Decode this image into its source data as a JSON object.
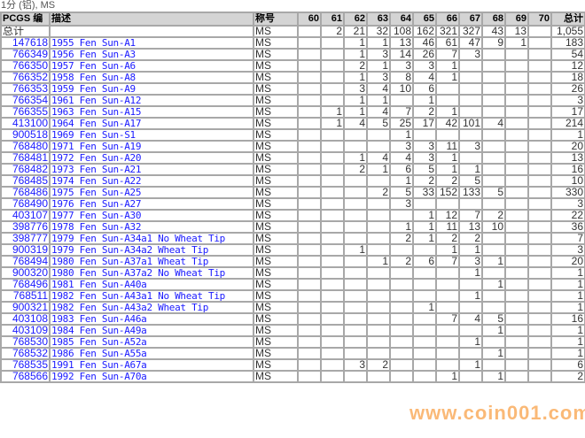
{
  "title": "1分 (铝), MS",
  "headers": {
    "code": "PCGS 编",
    "desc": "描述",
    "designation": "称号",
    "grades": [
      "60",
      "61",
      "62",
      "63",
      "64",
      "65",
      "66",
      "67",
      "68",
      "69",
      "70"
    ],
    "total": "总计"
  },
  "total_row": {
    "label": "总计",
    "designation": "MS",
    "counts": [
      "",
      "2",
      "21",
      "32",
      "108",
      "162",
      "321",
      "327",
      "43",
      "13",
      ""
    ],
    "total": "1,055"
  },
  "rows": [
    {
      "code": "147618",
      "desc": "1955 Fen Sun-A1",
      "counts": [
        "",
        "",
        "1",
        "1",
        "13",
        "46",
        "61",
        "47",
        "9",
        "1",
        ""
      ],
      "total": "183"
    },
    {
      "code": "766349",
      "desc": "1956 Fen Sun-A3",
      "counts": [
        "",
        "",
        "1",
        "3",
        "14",
        "26",
        "7",
        "3",
        "",
        "",
        ""
      ],
      "total": "54"
    },
    {
      "code": "766350",
      "desc": "1957 Fen Sun-A6",
      "counts": [
        "",
        "",
        "2",
        "1",
        "3",
        "3",
        "1",
        "",
        "",
        "",
        ""
      ],
      "total": "12"
    },
    {
      "code": "766352",
      "desc": "1958 Fen Sun-A8",
      "counts": [
        "",
        "",
        "1",
        "3",
        "8",
        "4",
        "1",
        "",
        "",
        "",
        ""
      ],
      "total": "18"
    },
    {
      "code": "766353",
      "desc": "1959 Fen Sun-A9",
      "counts": [
        "",
        "",
        "3",
        "4",
        "10",
        "6",
        "",
        "",
        "",
        "",
        ""
      ],
      "total": "26"
    },
    {
      "code": "766354",
      "desc": "1961 Fen Sun-A12",
      "counts": [
        "",
        "",
        "1",
        "1",
        "",
        "1",
        "",
        "",
        "",
        "",
        ""
      ],
      "total": "3"
    },
    {
      "code": "766355",
      "desc": "1963 Fen Sun-A15",
      "counts": [
        "",
        "1",
        "1",
        "4",
        "7",
        "2",
        "1",
        "",
        "",
        "",
        ""
      ],
      "total": "17"
    },
    {
      "code": "413100",
      "desc": "1964 Fen Sun-A17",
      "counts": [
        "",
        "1",
        "4",
        "5",
        "25",
        "17",
        "42",
        "101",
        "4",
        "",
        ""
      ],
      "total": "214"
    },
    {
      "code": "900518",
      "desc": "1969 Fen Sun-S1",
      "counts": [
        "",
        "",
        "",
        "",
        "1",
        "",
        "",
        "",
        "",
        "",
        ""
      ],
      "total": "1"
    },
    {
      "code": "768480",
      "desc": "1971 Fen Sun-A19",
      "counts": [
        "",
        "",
        "",
        "",
        "3",
        "3",
        "11",
        "3",
        "",
        "",
        ""
      ],
      "total": "20"
    },
    {
      "code": "768481",
      "desc": "1972 Fen Sun-A20",
      "counts": [
        "",
        "",
        "1",
        "4",
        "4",
        "3",
        "1",
        "",
        "",
        "",
        ""
      ],
      "total": "13"
    },
    {
      "code": "768482",
      "desc": "1973 Fen Sun-A21",
      "counts": [
        "",
        "",
        "2",
        "1",
        "6",
        "5",
        "1",
        "1",
        "",
        "",
        ""
      ],
      "total": "16"
    },
    {
      "code": "768485",
      "desc": "1974 Fen Sun-A22",
      "counts": [
        "",
        "",
        "",
        "",
        "1",
        "2",
        "2",
        "5",
        "",
        "",
        ""
      ],
      "total": "10"
    },
    {
      "code": "768486",
      "desc": "1975 Fen Sun-A25",
      "counts": [
        "",
        "",
        "",
        "2",
        "5",
        "33",
        "152",
        "133",
        "5",
        "",
        ""
      ],
      "total": "330"
    },
    {
      "code": "768490",
      "desc": "1976 Fen Sun-A27",
      "counts": [
        "",
        "",
        "",
        "",
        "3",
        "",
        "",
        "",
        "",
        "",
        ""
      ],
      "total": "3"
    },
    {
      "code": "403107",
      "desc": "1977 Fen Sun-A30",
      "counts": [
        "",
        "",
        "",
        "",
        "",
        "1",
        "12",
        "7",
        "2",
        "",
        ""
      ],
      "total": "22"
    },
    {
      "code": "398776",
      "desc": "1978 Fen Sun-A32",
      "counts": [
        "",
        "",
        "",
        "",
        "1",
        "1",
        "11",
        "13",
        "10",
        "",
        ""
      ],
      "total": "36"
    },
    {
      "code": "398777",
      "desc": "1979 Fen Sun-A34a1 No Wheat Tip",
      "counts": [
        "",
        "",
        "",
        "",
        "2",
        "1",
        "2",
        "2",
        "",
        "",
        ""
      ],
      "total": "7"
    },
    {
      "code": "900319",
      "desc": "1979 Fen Sun-A34a2 Wheat Tip",
      "counts": [
        "",
        "",
        "1",
        "",
        "",
        "",
        "1",
        "1",
        "",
        "",
        ""
      ],
      "total": "3"
    },
    {
      "code": "768494",
      "desc": "1980 Fen Sun-A37a1 Wheat Tip",
      "counts": [
        "",
        "",
        "",
        "1",
        "2",
        "6",
        "7",
        "3",
        "1",
        "",
        ""
      ],
      "total": "20"
    },
    {
      "code": "900320",
      "desc": "1980 Fen Sun-A37a2 No Wheat Tip",
      "counts": [
        "",
        "",
        "",
        "",
        "",
        "",
        "",
        "1",
        "",
        "",
        ""
      ],
      "total": "1"
    },
    {
      "code": "768496",
      "desc": "1981 Fen Sun-A40a",
      "counts": [
        "",
        "",
        "",
        "",
        "",
        "",
        "",
        "",
        "1",
        "",
        ""
      ],
      "total": "1"
    },
    {
      "code": "768511",
      "desc": "1982 Fen Sun-A43a1 No Wheat Tip",
      "counts": [
        "",
        "",
        "",
        "",
        "",
        "",
        "",
        "1",
        "",
        "",
        ""
      ],
      "total": "1"
    },
    {
      "code": "900321",
      "desc": "1982 Fen Sun-A43a2 Wheat Tip",
      "counts": [
        "",
        "",
        "",
        "",
        "",
        "1",
        "",
        "",
        "",
        "",
        ""
      ],
      "total": "1"
    },
    {
      "code": "403108",
      "desc": "1983 Fen Sun-A46a",
      "counts": [
        "",
        "",
        "",
        "",
        "",
        "",
        "7",
        "4",
        "5",
        "",
        ""
      ],
      "total": "16"
    },
    {
      "code": "403109",
      "desc": "1984 Fen Sun-A49a",
      "counts": [
        "",
        "",
        "",
        "",
        "",
        "",
        "",
        "",
        "1",
        "",
        ""
      ],
      "total": "1"
    },
    {
      "code": "768530",
      "desc": "1985 Fen Sun-A52a",
      "counts": [
        "",
        "",
        "",
        "",
        "",
        "",
        "",
        "1",
        "",
        "",
        ""
      ],
      "total": "1"
    },
    {
      "code": "768532",
      "desc": "1986 Fen Sun-A55a",
      "counts": [
        "",
        "",
        "",
        "",
        "",
        "",
        "",
        "",
        "1",
        "",
        ""
      ],
      "total": "1"
    },
    {
      "code": "768535",
      "desc": "1991 Fen Sun-A67a",
      "counts": [
        "",
        "",
        "3",
        "2",
        "",
        "",
        "",
        "1",
        "",
        "",
        ""
      ],
      "total": "6"
    },
    {
      "code": "768566",
      "desc": "1992 Fen Sun-A70a",
      "counts": [
        "",
        "",
        "",
        "",
        "",
        "",
        "1",
        "",
        "1",
        "",
        ""
      ],
      "total": "2"
    }
  ],
  "designation": "MS",
  "watermark": "www.coin001.com"
}
